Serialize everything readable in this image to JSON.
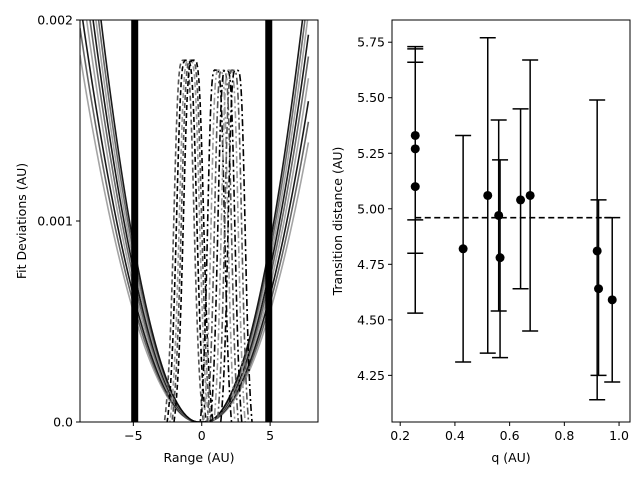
{
  "chart_data": [
    {
      "type": "line",
      "xlabel": "Range (AU)",
      "ylabel": "Fit Deviations (AU)",
      "xlim": [
        -8.9,
        8.5
      ],
      "ylim": [
        0,
        0.002
      ],
      "xticks": [
        -5,
        0,
        5
      ],
      "xtick_labels": [
        "−5",
        "0",
        "5"
      ],
      "yticks": [
        0,
        0.001,
        0.002
      ],
      "ytick_labels": [
        "0.0",
        "0.001",
        "0.002"
      ],
      "vertical_bars": [
        -4.9,
        4.9
      ],
      "solid_curve_coefficients": [
        2.44e-05,
        2.62e-05,
        2.8e-05,
        3e-05,
        3.19e-05,
        3.38e-05,
        3.57e-05,
        3.76e-05,
        3.95e-05
      ],
      "dashed_curve_centers": [
        -1.3,
        -1.1,
        -0.9,
        -0.75,
        -0.6
      ],
      "dashdot_curve_centers": [
        1.05,
        1.3,
        1.55,
        1.8,
        2.05,
        2.3,
        2.55
      ],
      "colors": {
        "dark": "#000000",
        "mid": "#555555",
        "light": "#9a9a9a"
      }
    },
    {
      "type": "scatter",
      "xlabel": "q (AU)",
      "ylabel": "Transition distance (AU)",
      "xlim": [
        0.17,
        1.04
      ],
      "ylim": [
        4.04,
        5.85
      ],
      "xticks": [
        0.2,
        0.4,
        0.6,
        0.8,
        1.0
      ],
      "xtick_labels": [
        "0.2",
        "0.4",
        "0.6",
        "0.8",
        "1.0"
      ],
      "yticks": [
        4.25,
        4.5,
        4.75,
        5.0,
        5.25,
        5.5,
        5.75
      ],
      "ytick_labels": [
        "4.25",
        "4.50",
        "4.75",
        "5.00",
        "5.25",
        "5.50",
        "5.75"
      ],
      "reference_line": 4.96,
      "points": [
        {
          "x": 0.255,
          "y": 5.33,
          "lo": 4.95,
          "hi": 5.72
        },
        {
          "x": 0.255,
          "y": 5.27,
          "lo": 4.8,
          "hi": 5.73
        },
        {
          "x": 0.255,
          "y": 5.1,
          "lo": 4.53,
          "hi": 5.66
        },
        {
          "x": 0.43,
          "y": 4.82,
          "lo": 4.31,
          "hi": 5.33
        },
        {
          "x": 0.52,
          "y": 5.06,
          "lo": 4.35,
          "hi": 5.77
        },
        {
          "x": 0.56,
          "y": 4.97,
          "lo": 4.54,
          "hi": 5.4
        },
        {
          "x": 0.565,
          "y": 4.78,
          "lo": 4.33,
          "hi": 5.22
        },
        {
          "x": 0.64,
          "y": 5.04,
          "lo": 4.64,
          "hi": 5.45
        },
        {
          "x": 0.675,
          "y": 5.06,
          "lo": 4.45,
          "hi": 5.67
        },
        {
          "x": 0.92,
          "y": 4.81,
          "lo": 4.14,
          "hi": 5.49
        },
        {
          "x": 0.925,
          "y": 4.64,
          "lo": 4.25,
          "hi": 5.04
        },
        {
          "x": 0.975,
          "y": 4.59,
          "lo": 4.22,
          "hi": 4.96
        }
      ],
      "colors": {
        "marker": "#000000",
        "line": "#000000"
      }
    }
  ]
}
